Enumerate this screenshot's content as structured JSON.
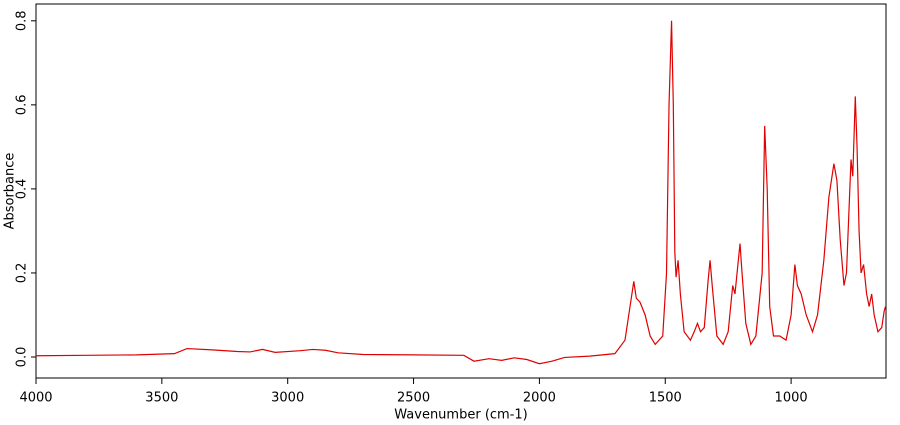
{
  "chart_data": {
    "type": "line",
    "xlabel": "Wavenumber (cm-1)",
    "ylabel": "Absorbance",
    "x": [
      4000,
      3800,
      3600,
      3450,
      3400,
      3300,
      3200,
      3150,
      3100,
      3050,
      2950,
      2900,
      2850,
      2800,
      2700,
      2500,
      2300,
      2260,
      2200,
      2150,
      2100,
      2050,
      2000,
      1950,
      1900,
      1800,
      1700,
      1660,
      1640,
      1625,
      1615,
      1600,
      1580,
      1560,
      1540,
      1510,
      1495,
      1485,
      1475,
      1468,
      1462,
      1457,
      1449,
      1440,
      1425,
      1400,
      1385,
      1372,
      1360,
      1345,
      1330,
      1322,
      1312,
      1295,
      1270,
      1250,
      1232,
      1223,
      1203,
      1195,
      1180,
      1160,
      1140,
      1115,
      1105,
      1095,
      1085,
      1070,
      1045,
      1020,
      1000,
      985,
      975,
      960,
      940,
      915,
      895,
      870,
      850,
      830,
      818,
      805,
      790,
      780,
      770,
      762,
      755,
      745,
      738,
      730,
      722,
      712,
      700,
      690,
      680,
      670,
      655,
      640,
      630,
      625
    ],
    "values": [
      0.003,
      0.004,
      0.005,
      0.008,
      0.02,
      0.017,
      0.013,
      0.012,
      0.018,
      0.011,
      0.015,
      0.018,
      0.016,
      0.01,
      0.006,
      0.005,
      0.004,
      -0.01,
      -0.004,
      -0.008,
      -0.002,
      -0.006,
      -0.016,
      -0.01,
      -0.001,
      0.002,
      0.008,
      0.04,
      0.12,
      0.18,
      0.14,
      0.13,
      0.1,
      0.05,
      0.03,
      0.05,
      0.2,
      0.6,
      0.8,
      0.6,
      0.25,
      0.19,
      0.23,
      0.15,
      0.06,
      0.04,
      0.06,
      0.08,
      0.06,
      0.07,
      0.18,
      0.23,
      0.16,
      0.05,
      0.03,
      0.06,
      0.17,
      0.15,
      0.27,
      0.2,
      0.08,
      0.03,
      0.05,
      0.2,
      0.55,
      0.4,
      0.12,
      0.05,
      0.05,
      0.04,
      0.1,
      0.22,
      0.17,
      0.15,
      0.1,
      0.06,
      0.1,
      0.23,
      0.38,
      0.46,
      0.42,
      0.28,
      0.17,
      0.2,
      0.35,
      0.47,
      0.43,
      0.62,
      0.5,
      0.3,
      0.2,
      0.22,
      0.15,
      0.12,
      0.15,
      0.1,
      0.06,
      0.07,
      0.11,
      0.12
    ],
    "color": "#e00000",
    "xlim": [
      4000,
      623
    ],
    "xticks": [
      4000,
      3500,
      3000,
      2500,
      2000,
      1500,
      1000
    ],
    "ylim": [
      -0.05,
      0.84
    ],
    "yticks": [
      {
        "value": 0,
        "label": "0.0"
      },
      0.2,
      0.4,
      0.6,
      0.8
    ]
  }
}
